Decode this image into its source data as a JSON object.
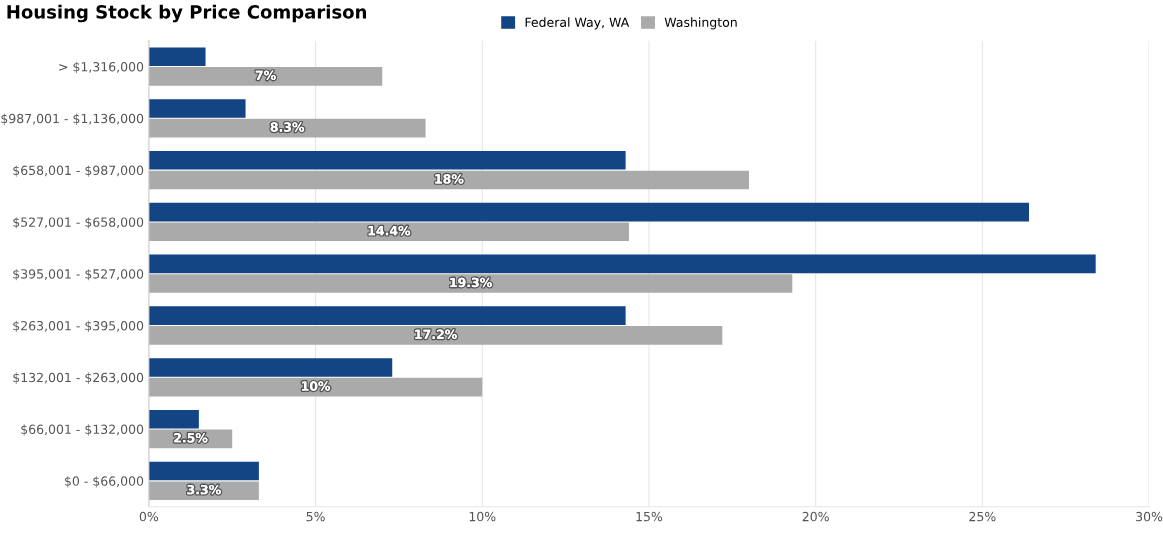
{
  "chart_data": {
    "type": "bar",
    "orientation": "horizontal",
    "title": "Housing Stock by Price Comparison",
    "categories": [
      "> $1,316,000",
      "$987,001 - $1,136,000",
      "$658,001 - $987,000",
      "$527,001 - $658,000",
      "$395,001 - $527,000",
      "$263,001 - $395,000",
      "$132,001 - $263,000",
      "$66,001 - $132,000",
      "$0 - $66,000"
    ],
    "series": [
      {
        "name": "Federal Way, WA",
        "color": "#134585",
        "values": [
          1.7,
          2.9,
          14.3,
          26.4,
          28.4,
          14.3,
          7.3,
          1.5,
          3.3
        ]
      },
      {
        "name": "Washington",
        "color": "#aaaaaa",
        "values": [
          7,
          8.3,
          18,
          14.4,
          19.3,
          17.2,
          10,
          2.5,
          3.3
        ],
        "value_labels": [
          "7%",
          "8.3%",
          "18%",
          "14.4%",
          "19.3%",
          "17.2%",
          "10%",
          "2.5%",
          "3.3%"
        ]
      }
    ],
    "xlim": [
      0,
      30
    ],
    "xticks": [
      {
        "value": 0,
        "label": "0%"
      },
      {
        "value": 5,
        "label": "5%"
      },
      {
        "value": 10,
        "label": "10%"
      },
      {
        "value": 15,
        "label": "15%"
      },
      {
        "value": 20,
        "label": "20%"
      },
      {
        "value": 25,
        "label": "25%"
      },
      {
        "value": 30,
        "label": "30%"
      }
    ],
    "grid": "x",
    "legend": "top right"
  }
}
